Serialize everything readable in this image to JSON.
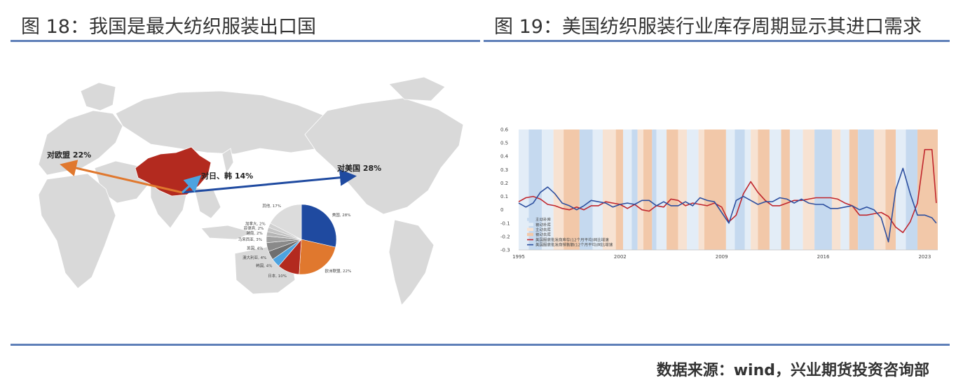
{
  "figure18": {
    "title": "图 18：我国是最大纺织服装出口国",
    "arrow_labels": {
      "europe": "对欧盟 22%",
      "japan_korea": "对日、韩 14%",
      "usa": "对美国 28%"
    },
    "chart_data": {
      "type": "pie",
      "title": "",
      "slices": [
        {
          "label": "美国, 28%",
          "value": 28,
          "color": "#1f4aa0"
        },
        {
          "label": "欧洲联盟, 22%",
          "value": 22,
          "color": "#e0782e"
        },
        {
          "label": "日本, 10%",
          "value": 10,
          "color": "#b32a1f"
        },
        {
          "label": "韩国, 4%",
          "value": 4,
          "color": "#4da3e0"
        },
        {
          "label": "澳大利亚, 4%",
          "value": 4,
          "color": "#6f6f6f"
        },
        {
          "label": "英国, 4%",
          "value": 4,
          "color": "#8a8a8a"
        },
        {
          "label": "马来西亚, 3%",
          "value": 3,
          "color": "#a1a1a1"
        },
        {
          "label": "越南, 2%",
          "value": 2,
          "color": "#b5b5b5"
        },
        {
          "label": "菲律宾, 2%",
          "value": 2,
          "color": "#c4c4c4"
        },
        {
          "label": "加拿大, 2%",
          "value": 2,
          "color": "#d0d0d0"
        },
        {
          "label": "其他, 17%",
          "value": 17,
          "color": "#dcdcdc"
        }
      ]
    },
    "colors": {
      "china": "#b32a1f",
      "land": "#d9d9d9",
      "arrow_eu": "#e0782e",
      "arrow_us": "#1f4aa0",
      "arrow_jk": "#4da3e0"
    }
  },
  "figure19": {
    "title": "图 19：美国纺织服装行业库存周期显示其进口需求",
    "chart_data": {
      "type": "line",
      "title": "",
      "xlabel": "",
      "ylabel": "",
      "x_range": [
        1995.0,
        2023.9
      ],
      "ylim": [
        -0.3,
        0.6
      ],
      "yticks": [
        "0.6",
        "0.5",
        "0.4",
        "0.3",
        "0.2",
        "0.1",
        "0",
        "-0.1",
        "-0.2",
        "-0.3"
      ],
      "xticks": [
        "1995",
        "2002",
        "2009",
        "2016",
        "2023"
      ],
      "legend_position": "bottom-left",
      "phases": [
        {
          "name": "主动补库",
          "color": "#c5d9ef"
        },
        {
          "name": "被动补库",
          "color": "#e3edf7"
        },
        {
          "name": "主动去库",
          "color": "#f7e2d2"
        },
        {
          "name": "被动去库",
          "color": "#f2c8a9"
        }
      ],
      "bands": [
        [
          1995.0,
          1995.7,
          1
        ],
        [
          1995.7,
          1996.6,
          0
        ],
        [
          1996.6,
          1997.4,
          1
        ],
        [
          1997.4,
          1998.1,
          2
        ],
        [
          1998.1,
          1999.2,
          3
        ],
        [
          1999.2,
          2000.1,
          0
        ],
        [
          2000.1,
          2000.8,
          1
        ],
        [
          2000.8,
          2001.7,
          2
        ],
        [
          2001.7,
          2002.2,
          3
        ],
        [
          2002.2,
          2002.8,
          1
        ],
        [
          2002.8,
          2003.2,
          0
        ],
        [
          2003.2,
          2003.6,
          2
        ],
        [
          2003.6,
          2004.2,
          3
        ],
        [
          2004.2,
          2004.5,
          0
        ],
        [
          2004.5,
          2005.2,
          1
        ],
        [
          2005.2,
          2006.0,
          3
        ],
        [
          2006.0,
          2006.6,
          2
        ],
        [
          2006.6,
          2007.4,
          1
        ],
        [
          2007.4,
          2007.8,
          2
        ],
        [
          2007.8,
          2009.3,
          3
        ],
        [
          2009.3,
          2009.9,
          1
        ],
        [
          2009.9,
          2010.6,
          0
        ],
        [
          2010.6,
          2011.0,
          1
        ],
        [
          2011.0,
          2011.5,
          2
        ],
        [
          2011.5,
          2012.3,
          3
        ],
        [
          2012.3,
          2013.1,
          1
        ],
        [
          2013.1,
          2013.7,
          3
        ],
        [
          2013.7,
          2014.6,
          1
        ],
        [
          2014.6,
          2015.4,
          2
        ],
        [
          2015.4,
          2016.6,
          0
        ],
        [
          2016.6,
          2017.2,
          2
        ],
        [
          2017.2,
          2017.8,
          1
        ],
        [
          2017.8,
          2018.4,
          3
        ],
        [
          2018.4,
          2019.5,
          0
        ],
        [
          2019.5,
          2020.3,
          2
        ],
        [
          2020.3,
          2021.0,
          3
        ],
        [
          2021.0,
          2021.7,
          1
        ],
        [
          2021.7,
          2022.5,
          0
        ],
        [
          2022.5,
          2023.9,
          3
        ]
      ],
      "series": [
        {
          "name": "美国服装批发商库存(12个月平均)同比增速",
          "color": "#c0262d",
          "x": [
            1995.0,
            1995.5,
            1996.0,
            1996.5,
            1997.0,
            1997.5,
            1998.0,
            1998.5,
            1999.0,
            1999.5,
            2000.0,
            2000.5,
            2001.0,
            2001.5,
            2002.0,
            2002.5,
            2003.0,
            2003.5,
            2004.0,
            2004.5,
            2005.0,
            2005.5,
            2006.0,
            2006.5,
            2007.0,
            2007.5,
            2008.0,
            2008.5,
            2009.0,
            2009.5,
            2010.0,
            2010.5,
            2011.0,
            2011.5,
            2012.0,
            2012.5,
            2013.0,
            2013.5,
            2014.0,
            2014.5,
            2015.0,
            2015.5,
            2016.0,
            2016.5,
            2017.0,
            2017.5,
            2018.0,
            2018.5,
            2019.0,
            2019.5,
            2020.0,
            2020.5,
            2021.0,
            2021.5,
            2022.0,
            2022.5,
            2023.0,
            2023.5,
            2023.8
          ],
          "y": [
            0.06,
            0.09,
            0.1,
            0.08,
            0.04,
            0.03,
            0.01,
            0.0,
            0.02,
            0.0,
            0.03,
            0.03,
            0.06,
            0.05,
            0.04,
            0.01,
            0.04,
            0.0,
            -0.01,
            0.03,
            0.02,
            0.08,
            0.07,
            0.03,
            0.05,
            0.04,
            0.03,
            0.05,
            0.02,
            -0.09,
            -0.04,
            0.12,
            0.21,
            0.13,
            0.07,
            0.03,
            0.03,
            0.05,
            0.07,
            0.07,
            0.08,
            0.09,
            0.09,
            0.09,
            0.08,
            0.05,
            0.03,
            -0.04,
            -0.04,
            -0.03,
            -0.02,
            -0.05,
            -0.13,
            -0.17,
            -0.09,
            0.05,
            0.45,
            0.45,
            0.05
          ]
        },
        {
          "name": "美国服装批发商销售额(12个月平均)同比增速",
          "color": "#2d4f9f",
          "x": [
            1995.0,
            1995.5,
            1996.0,
            1996.5,
            1997.0,
            1997.5,
            1998.0,
            1998.5,
            1999.0,
            1999.5,
            2000.0,
            2000.5,
            2001.0,
            2001.5,
            2002.0,
            2002.5,
            2003.0,
            2003.5,
            2004.0,
            2004.5,
            2005.0,
            2005.5,
            2006.0,
            2006.5,
            2007.0,
            2007.5,
            2008.0,
            2008.5,
            2009.0,
            2009.5,
            2010.0,
            2010.5,
            2011.0,
            2011.5,
            2012.0,
            2012.5,
            2013.0,
            2013.5,
            2014.0,
            2014.5,
            2015.0,
            2015.5,
            2016.0,
            2016.5,
            2017.0,
            2017.5,
            2018.0,
            2018.5,
            2019.0,
            2019.5,
            2020.0,
            2020.5,
            2021.0,
            2021.5,
            2022.0,
            2022.5,
            2023.0,
            2023.5,
            2023.8
          ],
          "y": [
            0.05,
            0.02,
            0.05,
            0.13,
            0.17,
            0.12,
            0.05,
            0.03,
            0.0,
            0.03,
            0.07,
            0.06,
            0.05,
            0.02,
            0.04,
            0.05,
            0.04,
            0.07,
            0.07,
            0.03,
            0.06,
            0.03,
            0.03,
            0.06,
            0.03,
            0.09,
            0.07,
            0.06,
            -0.02,
            -0.1,
            0.07,
            0.1,
            0.07,
            0.04,
            0.06,
            0.06,
            0.09,
            0.08,
            0.05,
            0.08,
            0.05,
            0.04,
            0.04,
            0.01,
            0.01,
            0.02,
            0.03,
            0.0,
            0.02,
            0.0,
            -0.06,
            -0.24,
            0.15,
            0.31,
            0.12,
            -0.04,
            -0.04,
            -0.06,
            -0.1
          ]
        }
      ]
    }
  },
  "source": "数据来源：wind，兴业期货投资咨询部"
}
